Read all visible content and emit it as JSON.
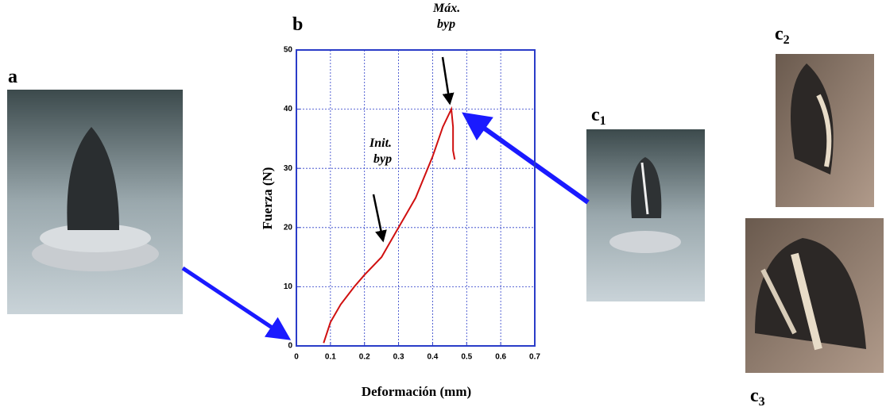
{
  "chart_data": {
    "type": "line",
    "xlabel": "Deformación (mm)",
    "ylabel": "Fuerza (N)",
    "x": [
      0.08,
      0.1,
      0.13,
      0.17,
      0.2,
      0.25,
      0.27,
      0.3,
      0.35,
      0.4,
      0.43,
      0.455,
      0.46,
      0.46,
      0.465
    ],
    "values": [
      0.5,
      4,
      7,
      10,
      12,
      15,
      17,
      20,
      25,
      32,
      37,
      40,
      37,
      33,
      31.5
    ],
    "color": "#d01010",
    "xlim": [
      0,
      0.7
    ],
    "xticks": [
      0,
      0.1,
      0.2,
      0.3,
      0.4,
      0.5,
      0.6,
      0.7
    ],
    "ylim": [
      0,
      50
    ],
    "yticks": [
      0,
      10,
      20,
      30,
      40,
      50
    ],
    "grid": true,
    "annotations": [
      [
        "Máx.",
        "byp"
      ],
      [
        "Init.",
        "byp"
      ]
    ]
  },
  "panels": [
    {
      "label": "a"
    },
    {
      "label": "b"
    },
    {
      "label": "c",
      "sub": "1"
    },
    {
      "label": "c",
      "sub": "2"
    },
    {
      "label": "c",
      "sub": "3"
    }
  ]
}
